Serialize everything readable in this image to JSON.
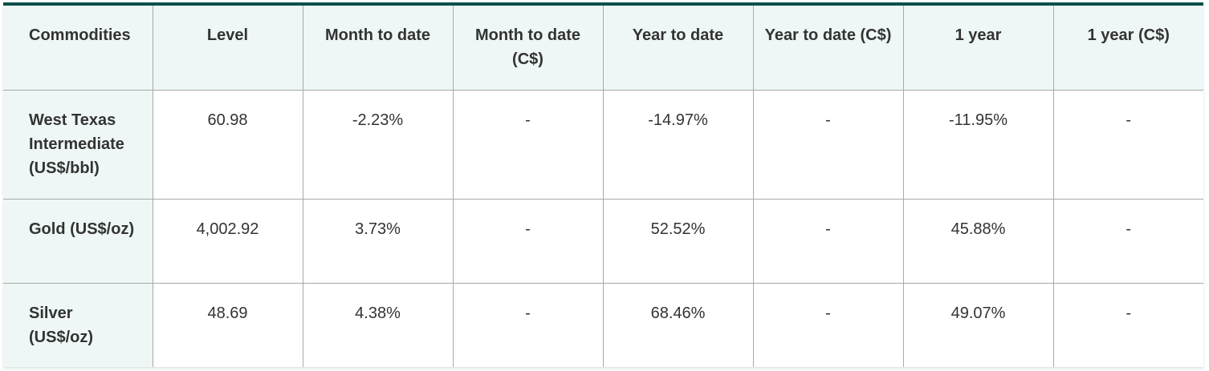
{
  "table": {
    "headers": [
      "Commodities",
      "Level",
      "Month to date",
      "Month to date (C$)",
      "Year to date",
      "Year to date (C$)",
      "1 year",
      "1 year (C$)"
    ],
    "rows": [
      [
        "West Texas Intermediate (US$/bbl)",
        "60.98",
        "-2.23%",
        "-",
        "-14.97%",
        "-",
        "-11.95%",
        "-"
      ],
      [
        "Gold (US$/oz)",
        "4,002.92",
        "3.73%",
        "-",
        "52.52%",
        "-",
        "45.88%",
        "-"
      ],
      [
        "Silver (US$/oz)",
        "48.69",
        "4.38%",
        "-",
        "68.46%",
        "-",
        "49.07%",
        "-"
      ]
    ]
  }
}
